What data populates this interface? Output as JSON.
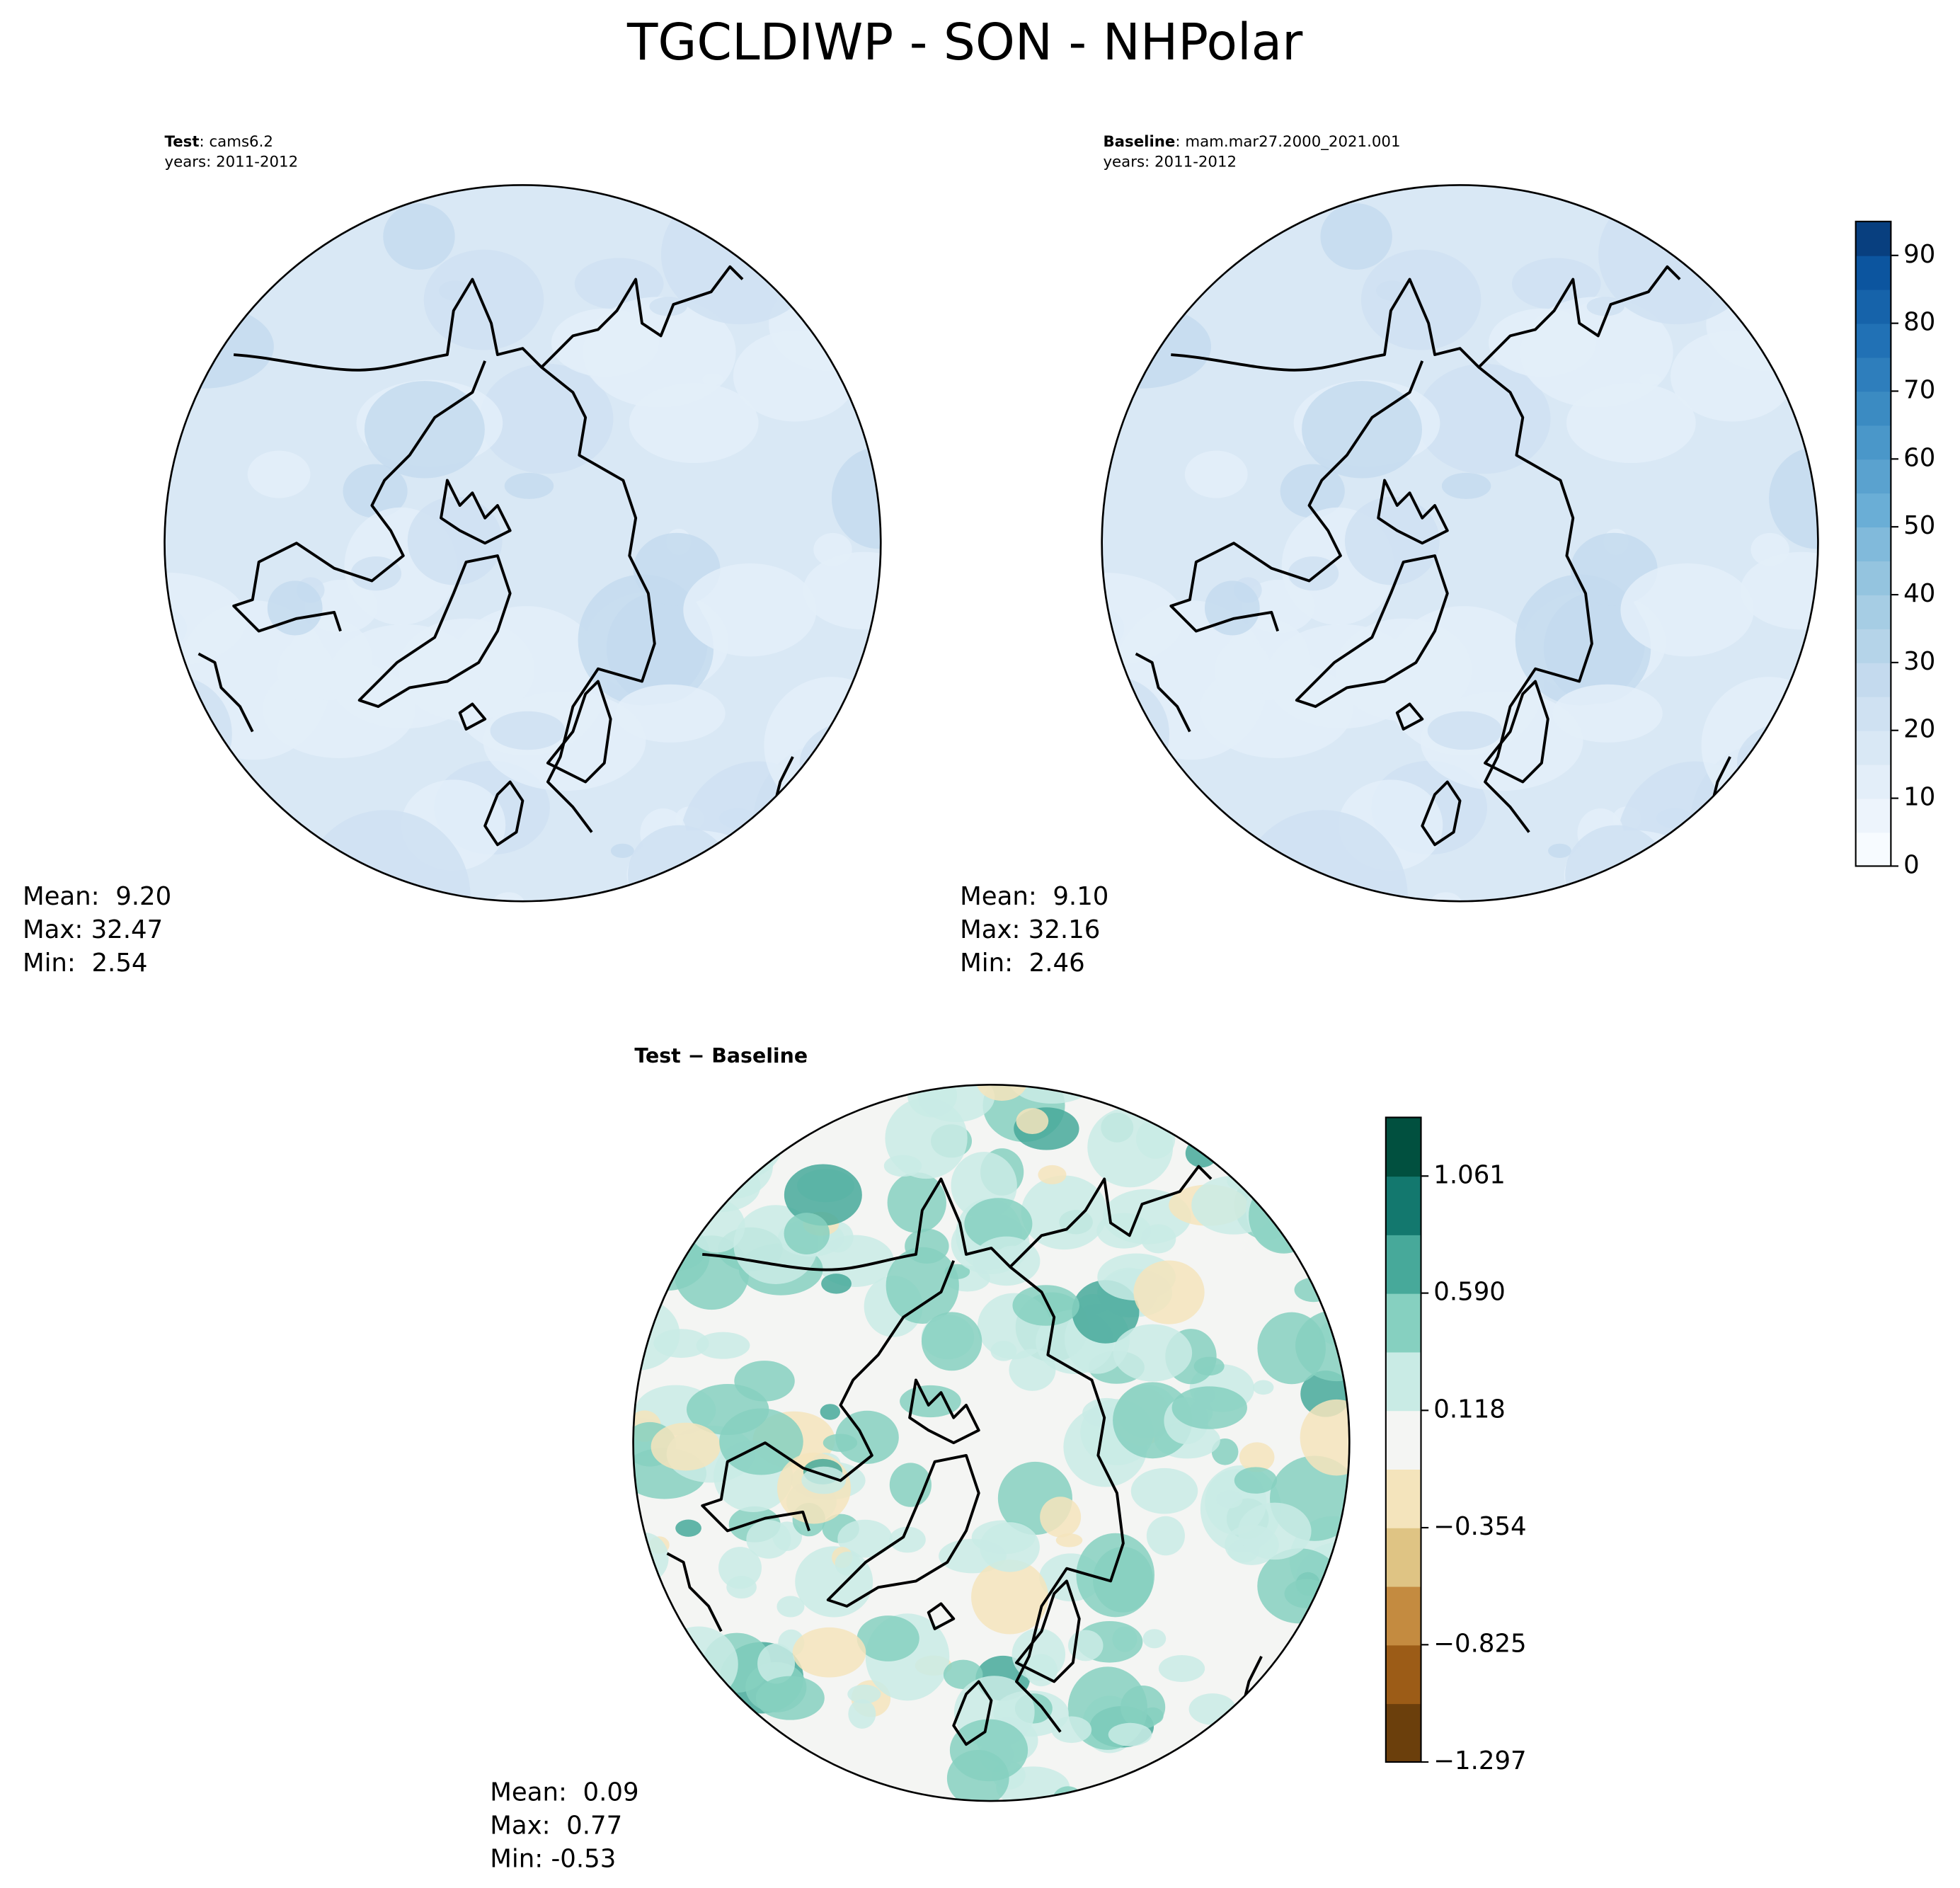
{
  "title": "TGCLDIWP - SON - NHPolar",
  "panels": [
    {
      "label": "Test",
      "case": ": cams6.2",
      "years": "years: 2011-2012",
      "stats": [
        "Mean:  9.20",
        "Max: 32.47",
        "Min:  2.54"
      ]
    },
    {
      "label": "Baseline",
      "case": ": mam.mar27.2000_2021.001",
      "years": "years: 2011-2012",
      "stats": [
        "Mean:  9.10",
        "Max: 32.16",
        "Min:  2.46"
      ]
    },
    {
      "label": "Test − Baseline",
      "stats": [
        "Mean:  0.09",
        "Max:  0.77",
        "Min: -0.53"
      ]
    }
  ],
  "colorbars": [
    {
      "lim": [
        0,
        95
      ],
      "ticks": [
        0,
        10,
        20,
        30,
        40,
        50,
        60,
        70,
        80,
        90
      ],
      "colors": [
        "#f7fbff",
        "#edf4fc",
        "#e3eef9",
        "#d9e8f5",
        "#cfe1f2",
        "#c4daee",
        "#b5d4e9",
        "#a6cde4",
        "#94c4df",
        "#81badb",
        "#6aaed6",
        "#5aa2cf",
        "#4a97c9",
        "#3b8bc2",
        "#2e7ebc",
        "#2171b5",
        "#1663aa",
        "#0c559f",
        "#083f7f"
      ]
    },
    {
      "lim": [
        -1.297,
        1.297
      ],
      "ticks": [
        {
          "value": -1.297,
          "label": "−1.297"
        },
        {
          "value": -0.825,
          "label": "−0.825"
        },
        {
          "value": -0.354,
          "label": "−0.354"
        },
        0.118,
        {
          "value": 0.59,
          "label": "0.590"
        },
        1.061
      ],
      "colors": [
        "#6b3f0c",
        "#9c5c17",
        "#c48b40",
        "#dfc484",
        "#f4e4bc",
        "#f4f5f3",
        "#c9ebe5",
        "#86d0c0",
        "#47a99a",
        "#13786e",
        "#01503f"
      ]
    }
  ]
}
